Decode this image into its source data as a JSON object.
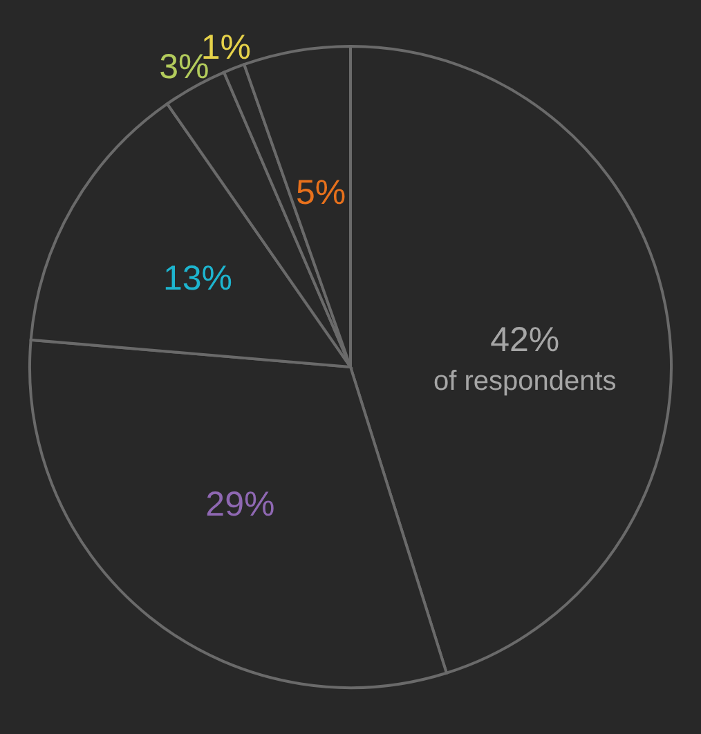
{
  "chart_data": {
    "type": "pie",
    "categories": [
      null,
      null,
      null,
      null,
      null,
      null
    ],
    "values": [
      42,
      29,
      13,
      3,
      1,
      5
    ],
    "value_labels": [
      "42%",
      "29%",
      "13%",
      "3%",
      "1%",
      "5%"
    ],
    "colors": [
      "#282828",
      "#282828",
      "#282828",
      "#282828",
      "#282828",
      "#282828"
    ],
    "annotations": [
      "of respondents"
    ]
  }
}
